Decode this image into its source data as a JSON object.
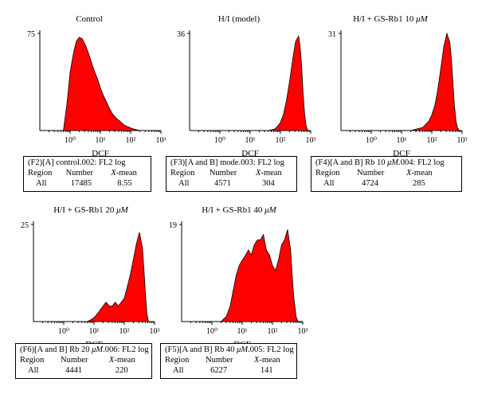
{
  "chart_data": [
    {
      "type": "area",
      "title": "Control",
      "xlabel": "DCF",
      "xscale": "log",
      "xlim": [
        0.1,
        1000
      ],
      "ylim": [
        0,
        75
      ],
      "ytick_top": "75",
      "xticks": [
        "10⁰",
        "10¹",
        "10²",
        "10³"
      ],
      "series": [
        {
          "color": "#ff0000",
          "x": [
            0.6,
            0.8,
            1.0,
            1.3,
            1.6,
            2.0,
            2.5,
            3.2,
            4,
            5,
            6.3,
            8,
            10,
            12.6,
            16,
            20,
            25,
            32,
            40,
            50,
            63,
            80,
            100,
            126,
            158,
            200
          ],
          "y": [
            0,
            22,
            45,
            60,
            69,
            72,
            71,
            66,
            60,
            53,
            46,
            40,
            33,
            27,
            22,
            17,
            13,
            10,
            8,
            6,
            4,
            3,
            2,
            1.2,
            0.6,
            0
          ]
        }
      ],
      "stats": {
        "header": "(F2)[A] control.002: FL2 log",
        "col_region": "Region",
        "col_number": "Number",
        "col_xmean_prefix": "X",
        "col_xmean_suffix": "-mean",
        "region": "All",
        "number": "17485",
        "xmean": "8.55"
      }
    },
    {
      "type": "area",
      "title_prefix": "H/I (model)",
      "title": "H/I (model)",
      "xlabel": "DCF",
      "xscale": "log",
      "xlim": [
        0.1,
        1000
      ],
      "ylim": [
        0,
        36
      ],
      "ytick_top": "36",
      "xticks": [
        "10⁰",
        "10¹",
        "10²",
        "10³"
      ],
      "series": [
        {
          "color": "#ff0000",
          "x": [
            40,
            63,
            80,
            100,
            126,
            158,
            200,
            251,
            316,
            398,
            450,
            500,
            560,
            630,
            700,
            800
          ],
          "y": [
            0,
            0.5,
            1.5,
            3,
            6,
            11,
            18,
            26,
            33,
            35,
            31,
            24,
            14,
            6,
            2,
            0
          ]
        }
      ],
      "stats": {
        "header": "(F3)[A and B] mode.003: FL2 log",
        "col_region": "Region",
        "col_number": "Number",
        "col_xmean_prefix": "X",
        "col_xmean_suffix": "-mean",
        "region": "All",
        "number": "4571",
        "xmean": "304"
      }
    },
    {
      "type": "area",
      "title_prefix": "H/I + GS-Rb1 10 ",
      "title_unit": "μM",
      "xlabel": "DCF",
      "xscale": "log",
      "xlim": [
        0.1,
        1000
      ],
      "ylim": [
        0,
        31
      ],
      "ytick_top": "31",
      "xticks": [
        "10⁰",
        "10¹",
        "10²",
        "10³"
      ],
      "series": [
        {
          "color": "#ff0000",
          "x": [
            20,
            32,
            50,
            63,
            80,
            100,
            126,
            158,
            200,
            251,
            316,
            398,
            450,
            500,
            560,
            630,
            700,
            800
          ],
          "y": [
            0,
            0.5,
            1,
            2,
            3,
            5,
            8,
            13,
            20,
            27,
            31,
            28,
            22,
            15,
            8,
            3,
            1,
            0
          ]
        }
      ],
      "stats": {
        "header_prefix": "(F4)[A and B] Rb 10 ",
        "header_unit": "μM",
        "header_suffix": ".004: FL2 log",
        "col_region": "Region",
        "col_number": "Number",
        "col_xmean_prefix": "X",
        "col_xmean_suffix": "-mean",
        "region": "All",
        "number": "4724",
        "xmean": "285"
      }
    },
    {
      "type": "area",
      "title_prefix": "H/I + GS-Rb1 20 ",
      "title_unit": "μM",
      "xlabel": "DCF",
      "xscale": "log",
      "xlim": [
        0.1,
        1000
      ],
      "ylim": [
        0,
        25
      ],
      "ytick_top": "25",
      "xticks": [
        "10⁰",
        "10¹",
        "10²",
        "10³"
      ],
      "series": [
        {
          "color": "#ff0000",
          "x": [
            6,
            8,
            10,
            13,
            16,
            20,
            25,
            32,
            40,
            50,
            63,
            80,
            100,
            126,
            158,
            200,
            251,
            316,
            398,
            450,
            500,
            560,
            630
          ],
          "y": [
            0,
            0.5,
            1,
            2,
            3,
            4,
            5,
            4,
            4,
            5,
            4,
            5,
            6,
            9,
            12,
            16,
            20,
            23,
            19,
            13,
            7,
            2,
            0
          ]
        }
      ],
      "stats": {
        "header_prefix": "(F6)[A and B] Rb 20 ",
        "header_unit": "μM",
        "header_suffix": ".006: FL2 log",
        "col_region": "Region",
        "col_number": "Number",
        "col_xmean_prefix": "X",
        "col_xmean_suffix": "-mean",
        "region": "All",
        "number": "4441",
        "xmean": "220"
      }
    },
    {
      "type": "area",
      "title_prefix": "H/I + GS-Rb1 40 ",
      "title_unit": "μM",
      "xlabel": "DCF",
      "xscale": "log",
      "xlim": [
        0.1,
        1000
      ],
      "ylim": [
        0,
        19
      ],
      "ytick_top": "19",
      "xticks": [
        "10⁰",
        "10¹",
        "10²",
        "10³"
      ],
      "series": [
        {
          "color": "#ff0000",
          "x": [
            2,
            3,
            4,
            5,
            6.3,
            8,
            10,
            13,
            16,
            20,
            25,
            32,
            40,
            50,
            63,
            80,
            100,
            126,
            158,
            200,
            251,
            316,
            398,
            450,
            500,
            600,
            700
          ],
          "y": [
            0,
            1,
            3,
            6,
            9,
            11,
            12,
            13,
            14,
            13,
            15,
            16,
            16,
            17,
            14,
            13,
            11,
            10,
            12,
            15,
            16,
            18,
            14,
            9,
            5,
            1,
            0
          ]
        }
      ],
      "stats": {
        "header_prefix": "(F5)[A and B] Rb 40 ",
        "header_unit": "μM",
        "header_suffix": ".005: FL2 log",
        "col_region": "Region",
        "col_number": "Number",
        "col_xmean_prefix": "X",
        "col_xmean_suffix": "-mean",
        "region": "All",
        "number": "6227",
        "xmean": "141"
      }
    }
  ]
}
